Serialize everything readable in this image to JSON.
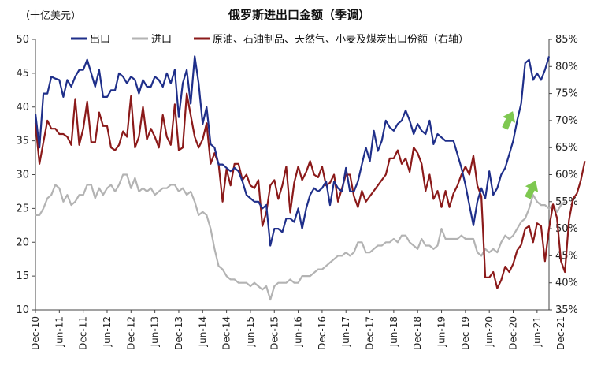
{
  "chart_data": {
    "type": "line",
    "title": "俄罗斯进出口金额（季调）",
    "y_left_unit": "（十亿美元）",
    "y_left_range": [
      10,
      50
    ],
    "y_left_ticks": [
      "10",
      "15",
      "20",
      "25",
      "30",
      "35",
      "40",
      "45",
      "50"
    ],
    "y_right_range": [
      35,
      85
    ],
    "y_right_ticks": [
      "35%",
      "40%",
      "45%",
      "50%",
      "55%",
      "60%",
      "65%",
      "70%",
      "75%",
      "80%",
      "85%"
    ],
    "x_tick_labels": [
      "Dec-10",
      "Jun-11",
      "Dec-11",
      "Jun-12",
      "Dec-12",
      "Jun-13",
      "Dec-13",
      "Jun-14",
      "Dec-14",
      "Jun-15",
      "Dec-15",
      "Jun-16",
      "Dec-16",
      "Jun-17",
      "Dec-17",
      "Jun-18",
      "Dec-18",
      "Jun-19",
      "Dec-19",
      "Jun-20",
      "Dec-20",
      "Jun-21",
      "Dec-21"
    ],
    "legend_position": "top",
    "annotations": [
      "green-up-arrow near Apr-21 export",
      "green-up-arrow near Aug-21 share"
    ],
    "colors": {
      "export": "#1f2f8a",
      "import": "#b3b3b3",
      "share": "#8b1a1a",
      "arrow": "#7ec850"
    },
    "series": [
      {
        "name": "出口",
        "axis": "left",
        "values": [
          39,
          34,
          42,
          42,
          44.5,
          44.2,
          44,
          41.5,
          44,
          43,
          44.5,
          45.5,
          45.5,
          47,
          45,
          43,
          45.5,
          41.5,
          41.5,
          42.5,
          42.5,
          45,
          44.5,
          43.5,
          44.5,
          44,
          42,
          44,
          43,
          43,
          44.5,
          44,
          43,
          45,
          43.5,
          45.5,
          38.5,
          43.5,
          45.5,
          40.5,
          47.5,
          43.5,
          37.5,
          40,
          34.5,
          34,
          31.5,
          31.5,
          31,
          30.5,
          31,
          30.5,
          29,
          27,
          26.5,
          26,
          26,
          25,
          25.5,
          19.5,
          22,
          22,
          21.5,
          23.5,
          23.5,
          23,
          25,
          22,
          25,
          27,
          28,
          27.5,
          28,
          29,
          25.5,
          29,
          28,
          27.5,
          31,
          27.5,
          27.5,
          29,
          31.5,
          34,
          32,
          36.5,
          33.5,
          35,
          38,
          37,
          36.5,
          37.5,
          38,
          39.5,
          38,
          36,
          37.5,
          36.5,
          36,
          38,
          34.5,
          36,
          35.5,
          35,
          35,
          35,
          33,
          31,
          28.5,
          25.5,
          22.5,
          26,
          28,
          26.5,
          30.5,
          27,
          28,
          30,
          31,
          33,
          35,
          38,
          40.5,
          46.5,
          47,
          44,
          45,
          44,
          45.5,
          47.5
        ]
      },
      {
        "name": "进口",
        "axis": "left",
        "values": [
          24,
          24,
          25,
          26.5,
          27,
          28.5,
          28,
          26,
          27,
          25.5,
          26,
          27,
          27,
          28.5,
          28.5,
          26.5,
          28,
          27,
          28,
          28.5,
          27.5,
          28.5,
          30,
          30,
          28,
          29.5,
          27.5,
          28,
          27.5,
          28,
          27,
          27.5,
          28,
          28,
          28.5,
          28.5,
          27.5,
          28,
          27,
          27.5,
          26,
          24,
          24.5,
          24,
          22,
          19,
          16.5,
          16,
          15,
          14.5,
          14.5,
          14,
          14,
          14,
          13.5,
          14,
          13.5,
          13,
          13.5,
          11.5,
          13.5,
          14,
          14,
          14,
          14.5,
          14,
          14,
          15,
          15,
          15,
          15.5,
          16,
          16,
          16.5,
          17,
          17.5,
          18,
          18,
          18.5,
          18,
          18.5,
          20,
          20,
          18.5,
          18.5,
          19,
          19.5,
          19.5,
          20,
          20,
          20.5,
          20,
          21,
          21,
          20,
          19.5,
          19,
          20.5,
          19.5,
          19.5,
          19,
          19.5,
          22,
          20.5,
          20.5,
          20.5,
          20.5,
          21,
          20.5,
          20.5,
          20.5,
          18.5,
          18,
          19,
          18.5,
          19,
          18.5,
          20,
          21,
          20.5,
          21,
          22,
          23,
          23.5,
          25,
          27,
          26,
          25.5,
          25.5,
          25,
          25.5,
          24.5,
          25.5,
          26
        ]
      },
      {
        "name": "原油、石油制品、天然气、小麦及煤炭出口份额（右轴）",
        "axis": "right",
        "values": [
          69.5,
          62,
          66,
          70,
          68.5,
          68.5,
          67.5,
          67.5,
          67,
          65.5,
          74,
          65.5,
          68.5,
          73.5,
          66,
          66,
          71.5,
          69,
          69,
          65,
          64.5,
          65.5,
          68,
          67,
          74.5,
          65,
          67,
          72.5,
          66.5,
          68.5,
          67,
          65,
          71,
          67,
          65.5,
          73,
          64.5,
          65,
          75,
          71,
          67,
          65,
          66.5,
          69.5,
          62,
          64,
          62,
          55,
          61,
          58,
          62,
          62,
          59,
          60,
          58,
          57.5,
          59,
          50.5,
          53,
          58,
          59,
          55.5,
          58,
          61.5,
          53,
          58.5,
          61.5,
          59,
          60.5,
          62.5,
          60,
          59.5,
          61.5,
          58,
          58.5,
          60,
          55,
          57.5,
          60,
          60,
          56,
          54,
          57,
          55,
          56,
          57,
          58,
          59,
          60,
          63,
          63,
          64.5,
          62,
          63,
          60.5,
          65,
          64,
          62,
          57,
          60,
          55.5,
          57,
          54,
          57,
          54,
          56.5,
          58,
          60,
          61.5,
          60,
          63.5,
          58,
          56,
          41,
          41,
          42,
          39,
          40.5,
          43,
          42,
          43.5,
          46,
          47,
          50,
          50.5,
          47.5,
          51,
          50.5,
          44,
          50,
          54.5,
          52,
          44,
          42,
          51.5,
          55.5,
          56.5,
          59,
          62.5
        ]
      }
    ]
  }
}
